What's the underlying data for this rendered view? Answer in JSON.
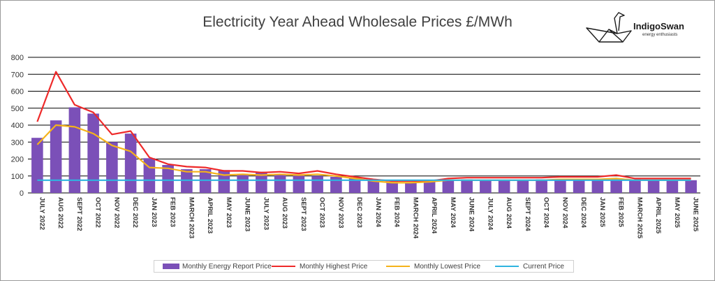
{
  "chart_data": {
    "type": "bar",
    "title": "Electricity Year Ahead Wholesale Prices £/MWh",
    "ylim": [
      0,
      800
    ],
    "yticks": [
      0,
      100,
      200,
      300,
      400,
      500,
      600,
      700,
      800
    ],
    "grid": true,
    "legend_position": "bottom",
    "categories": [
      "JULY 2022",
      "AUG 2022",
      "SEPT 2022",
      "OCT 2022",
      "NOV 2022",
      "DEC 2022",
      "JAN 2023",
      "FEB 2023",
      "MARCH 2023",
      "APRIL 2023",
      "MAY 2023",
      "JUNE 2023",
      "JULY 2023",
      "AUG 2023",
      "SEPT 2023",
      "OCT 2023",
      "NOV 2023",
      "DEC 2023",
      "JAN 2024",
      "FEB 2024",
      "MARCH 2024",
      "APRIL 2024",
      "MAY 2024",
      "JUNE 2024",
      "JULY 2024",
      "AUG 2024",
      "SEPT 2024",
      "OCT 2024",
      "NOV 2024",
      "DEC 2024",
      "JAN 2025",
      "FEB 2025",
      "MARCH 2025",
      "APRIL 2025",
      "MAY 2025",
      "JUNE 2025"
    ],
    "series": [
      {
        "name": "Monthly Energy Report Price",
        "kind": "bar",
        "color": "#7b50b8",
        "values": [
          325,
          428,
          505,
          468,
          300,
          350,
          205,
          165,
          140,
          140,
          135,
          110,
          125,
          110,
          110,
          100,
          95,
          90,
          75,
          65,
          60,
          65,
          75,
          80,
          75,
          75,
          75,
          80,
          80,
          80,
          80,
          80,
          80,
          75,
          75,
          75
        ]
      },
      {
        "name": "Monthly Highest Price",
        "kind": "line",
        "color": "#ee2a2a",
        "values": [
          420,
          715,
          520,
          475,
          345,
          365,
          210,
          170,
          155,
          150,
          130,
          130,
          120,
          125,
          115,
          130,
          110,
          95,
          80,
          70,
          70,
          70,
          85,
          90,
          90,
          90,
          90,
          90,
          95,
          95,
          95,
          105,
          85,
          85,
          85,
          85
        ]
      },
      {
        "name": "Monthly Lowest Price",
        "kind": "line",
        "color": "#f5b21a",
        "values": [
          285,
          400,
          390,
          350,
          280,
          245,
          150,
          145,
          125,
          125,
          105,
          110,
          105,
          110,
          105,
          110,
          100,
          85,
          70,
          60,
          60,
          65,
          75,
          75,
          75,
          75,
          75,
          75,
          80,
          80,
          80,
          85,
          75,
          75,
          75,
          75
        ]
      },
      {
        "name": "Current Price",
        "kind": "line",
        "color": "#2fb4e0",
        "values": [
          75,
          75,
          75,
          75,
          75,
          75,
          75,
          75,
          75,
          75,
          75,
          75,
          75,
          75,
          75,
          75,
          75,
          75,
          75,
          75,
          75,
          75,
          75,
          75,
          75,
          75,
          75,
          75,
          75,
          75,
          75,
          75,
          75,
          75,
          75,
          75
        ]
      }
    ]
  },
  "logo": {
    "name": "IndigoSwan",
    "tagline": "energy enthusiasts"
  }
}
